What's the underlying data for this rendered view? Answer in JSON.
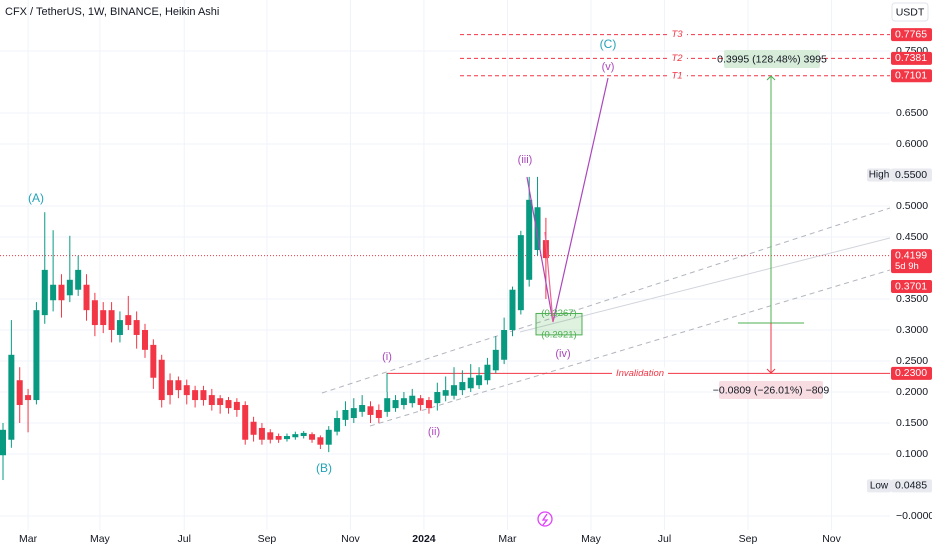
{
  "chart_data": {
    "type": "candlestick",
    "title": "CFX / TetherUS, 1W, BINANCE, Heikin Ashi",
    "currency": "USDT",
    "up_color": "#089981",
    "down_color": "#f23645",
    "grid": true,
    "xlim": [
      -0.36,
      106.2
    ],
    "ylim": [
      -0.0226,
      0.8323
    ],
    "xticks": [
      {
        "value": 3,
        "label": "Mar"
      },
      {
        "value": 11.6,
        "label": "May"
      },
      {
        "value": 21.7,
        "label": "Jul"
      },
      {
        "value": 31.6,
        "label": "Sep"
      },
      {
        "value": 41.6,
        "label": "Nov"
      },
      {
        "value": 50.4,
        "label": "2024"
      },
      {
        "value": 60.4,
        "label": "Mar"
      },
      {
        "value": 70.4,
        "label": "May"
      },
      {
        "value": 79.2,
        "label": "Jul"
      },
      {
        "value": 89.2,
        "label": "Sep"
      },
      {
        "value": 99.2,
        "label": "Nov"
      }
    ],
    "yticks": [
      {
        "value": 0,
        "label": "−0.0000"
      },
      {
        "value": 0.1,
        "label": "0.1000"
      },
      {
        "value": 0.15,
        "label": "0.1500"
      },
      {
        "value": 0.2,
        "label": "0.2000"
      },
      {
        "value": 0.25,
        "label": "0.2500"
      },
      {
        "value": 0.3,
        "label": "0.3000"
      },
      {
        "value": 0.35,
        "label": "0.3500"
      },
      {
        "value": 0.45,
        "label": "0.4500"
      },
      {
        "value": 0.5,
        "label": "0.5000"
      },
      {
        "value": 0.6,
        "label": "0.6000"
      },
      {
        "value": 0.65,
        "label": "0.6500"
      },
      {
        "value": 0.75,
        "label": "0.7500"
      }
    ],
    "open": [
      0.098,
      0.123,
      0.219,
      0.195,
      0.187,
      0.324,
      0.348,
      0.373,
      0.356,
      0.365,
      0.373,
      0.348,
      0.332,
      0.332,
      0.292,
      0.324,
      0.316,
      0.3,
      0.276,
      0.252,
      0.219,
      0.219,
      0.211,
      0.203,
      0.203,
      0.195,
      0.19,
      0.187,
      0.184,
      0.179,
      0.152,
      0.142,
      0.135,
      0.129,
      0.124,
      0.127,
      0.129,
      0.132,
      0.127,
      0.115,
      0.136,
      0.155,
      0.158,
      0.168,
      0.177,
      0.171,
      0.168,
      0.174,
      0.179,
      0.182,
      0.19,
      0.187,
      0.182,
      0.194,
      0.194,
      0.203,
      0.206,
      0.211,
      0.219,
      0.235,
      0.252,
      0.3,
      0.332,
      0.381,
      0.429,
      0.445
    ],
    "high": [
      0.15,
      0.316,
      0.24,
      0.205,
      0.345,
      0.49,
      0.461,
      0.39,
      0.452,
      0.42,
      0.39,
      0.36,
      0.345,
      0.345,
      0.33,
      0.355,
      0.33,
      0.31,
      0.285,
      0.26,
      0.23,
      0.225,
      0.22,
      0.21,
      0.21,
      0.205,
      0.195,
      0.192,
      0.19,
      0.185,
      0.16,
      0.15,
      0.14,
      0.133,
      0.133,
      0.136,
      0.137,
      0.135,
      0.13,
      0.145,
      0.17,
      0.185,
      0.19,
      0.195,
      0.185,
      0.18,
      0.2,
      0.195,
      0.2,
      0.205,
      0.195,
      0.192,
      0.215,
      0.225,
      0.24,
      0.235,
      0.245,
      0.24,
      0.255,
      0.29,
      0.32,
      0.37,
      0.46,
      0.547,
      0.547,
      0.481
    ],
    "low": [
      0.058,
      0.11,
      0.15,
      0.135,
      0.18,
      0.31,
      0.33,
      0.32,
      0.345,
      0.355,
      0.315,
      0.29,
      0.295,
      0.28,
      0.28,
      0.3,
      0.27,
      0.255,
      0.205,
      0.175,
      0.18,
      0.19,
      0.18,
      0.175,
      0.178,
      0.17,
      0.165,
      0.165,
      0.16,
      0.115,
      0.12,
      0.115,
      0.117,
      0.118,
      0.12,
      0.123,
      0.125,
      0.118,
      0.108,
      0.103,
      0.13,
      0.145,
      0.15,
      0.16,
      0.15,
      0.15,
      0.16,
      0.168,
      0.172,
      0.175,
      0.17,
      0.165,
      0.17,
      0.185,
      0.188,
      0.195,
      0.2,
      0.205,
      0.212,
      0.23,
      0.245,
      0.29,
      0.325,
      0.37,
      0.42,
      0.35
    ],
    "close": [
      0.139,
      0.26,
      0.179,
      0.187,
      0.332,
      0.397,
      0.373,
      0.348,
      0.381,
      0.397,
      0.332,
      0.308,
      0.308,
      0.3,
      0.316,
      0.308,
      0.292,
      0.268,
      0.223,
      0.187,
      0.195,
      0.203,
      0.195,
      0.187,
      0.187,
      0.179,
      0.179,
      0.174,
      0.171,
      0.123,
      0.131,
      0.123,
      0.123,
      0.123,
      0.129,
      0.132,
      0.134,
      0.123,
      0.115,
      0.139,
      0.158,
      0.171,
      0.174,
      0.179,
      0.163,
      0.158,
      0.19,
      0.187,
      0.19,
      0.194,
      0.179,
      0.174,
      0.2,
      0.203,
      0.211,
      0.216,
      0.223,
      0.227,
      0.244,
      0.268,
      0.3,
      0.365,
      0.453,
      0.51,
      0.498,
      0.416
    ],
    "price_labels": [
      {
        "value": 0.7765,
        "label": "0.7765",
        "color": "#f23645"
      },
      {
        "value": 0.7381,
        "label": "0.7381",
        "color": "#f23645"
      },
      {
        "value": 0.7101,
        "label": "0.7101",
        "color": "#f23645"
      },
      {
        "value": 0.55,
        "label": "0.5500",
        "tag": "High",
        "color": "#e8eaf0"
      },
      {
        "value": 0.4199,
        "label": "0.4199",
        "note": "5d 9h",
        "color": "#f23645"
      },
      {
        "value": 0.3701,
        "label": "0.3701",
        "color": "#f23645"
      },
      {
        "value": 0.23,
        "label": "0.2300",
        "color": "#f23645"
      },
      {
        "value": 0.0485,
        "label": "0.0485",
        "tag": "Low",
        "color": "#e8eaf0"
      }
    ],
    "current_price": 0.4199,
    "targets": [
      {
        "label": "T3",
        "value": 0.7765
      },
      {
        "label": "T2",
        "value": 0.7381
      },
      {
        "label": "T1",
        "value": 0.7101
      }
    ],
    "invalidation": {
      "label": "Invalidation",
      "value": 0.23
    },
    "zone": {
      "values": [
        0.3267,
        0.2921
      ],
      "value_labels": [
        "(0.3267)",
        "(0.2921)"
      ]
    },
    "wave_labels": [
      "(A)",
      "(B)",
      "(C)",
      "(i)",
      "(ii)",
      "(iii)",
      "(iv)",
      "(v)"
    ],
    "measure_up": "0.3995 (128.48%) 3995",
    "measure_down": "−0.0809 (−26.01%) −809"
  }
}
